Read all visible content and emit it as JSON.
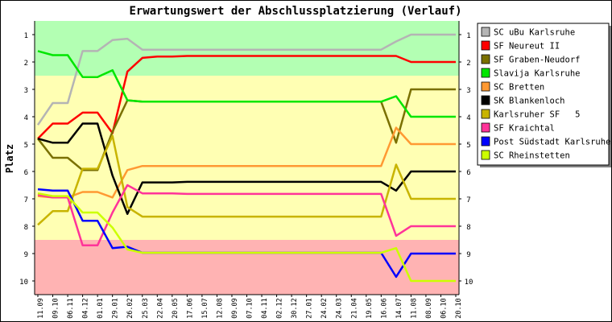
{
  "chart_data": {
    "type": "line",
    "title": "Erwartungswert der Abschlussplatzierung (Verlauf)",
    "ylabel": "Platz",
    "xlabel": "",
    "ylim": [
      0.5,
      10.5
    ],
    "y_inverted": true,
    "yticks": [
      1,
      2,
      3,
      4,
      5,
      6,
      7,
      8,
      9,
      10
    ],
    "x": [
      "11.09",
      "09.10",
      "06.11",
      "04.12",
      "01.01",
      "29.01",
      "26.02",
      "25.03",
      "22.04",
      "20.05",
      "17.06",
      "15.07",
      "12.08",
      "09.09",
      "07.10",
      "04.11",
      "02.12",
      "30.12",
      "27.01",
      "24.02",
      "24.03",
      "21.04",
      "19.05",
      "16.06",
      "14.07",
      "11.08",
      "08.09",
      "06.10",
      "20.10"
    ],
    "grid": false,
    "legend_position": "right",
    "zones": [
      {
        "from": 0.5,
        "to": 2.5,
        "color": "#b3ffb3"
      },
      {
        "from": 2.5,
        "to": 8.5,
        "color": "#ffffb3"
      },
      {
        "from": 8.5,
        "to": 10.5,
        "color": "#ffb3b3"
      }
    ],
    "series": [
      {
        "name": "SC uBu Karlsruhe",
        "color": "#b4b4b4",
        "values": [
          4.3,
          3.5,
          3.5,
          1.6,
          1.6,
          1.2,
          1.15,
          1.55,
          1.55,
          1.55,
          1.55,
          1.55,
          1.55,
          1.55,
          1.55,
          1.55,
          1.55,
          1.55,
          1.55,
          1.55,
          1.55,
          1.55,
          1.55,
          1.55,
          1.25,
          1.0,
          1.0,
          1.0,
          1.0
        ]
      },
      {
        "name": "SF Neureut II",
        "color": "#ff0000",
        "values": [
          4.8,
          4.25,
          4.25,
          3.85,
          3.85,
          4.6,
          2.35,
          1.85,
          1.8,
          1.8,
          1.78,
          1.78,
          1.78,
          1.78,
          1.78,
          1.78,
          1.78,
          1.78,
          1.78,
          1.78,
          1.78,
          1.78,
          1.78,
          1.78,
          1.78,
          2.0,
          2.0,
          2.0,
          2.0
        ]
      },
      {
        "name": "SF Graben-Neudorf",
        "color": "#7a7000",
        "values": [
          4.8,
          5.5,
          5.5,
          5.95,
          5.95,
          4.55,
          3.4,
          3.45,
          3.45,
          3.45,
          3.45,
          3.45,
          3.45,
          3.45,
          3.45,
          3.45,
          3.45,
          3.45,
          3.45,
          3.45,
          3.45,
          3.45,
          3.45,
          3.45,
          4.95,
          3.0,
          3.0,
          3.0,
          3.0
        ]
      },
      {
        "name": "Slavija Karlsruhe",
        "color": "#00e600",
        "values": [
          1.6,
          1.75,
          1.75,
          2.55,
          2.55,
          2.3,
          3.4,
          3.45,
          3.45,
          3.45,
          3.45,
          3.45,
          3.45,
          3.45,
          3.45,
          3.45,
          3.45,
          3.45,
          3.45,
          3.45,
          3.45,
          3.45,
          3.45,
          3.45,
          3.25,
          4.0,
          4.0,
          4.0,
          4.0
        ]
      },
      {
        "name": "SC Bretten",
        "color": "#ff9933",
        "values": [
          6.9,
          6.95,
          6.95,
          6.75,
          6.75,
          6.95,
          5.95,
          5.8,
          5.8,
          5.8,
          5.8,
          5.8,
          5.8,
          5.8,
          5.8,
          5.8,
          5.8,
          5.8,
          5.8,
          5.8,
          5.8,
          5.8,
          5.8,
          5.8,
          4.4,
          5.0,
          5.0,
          5.0,
          5.0
        ]
      },
      {
        "name": "SK Blankenloch",
        "color": "#000000",
        "values": [
          4.8,
          4.95,
          4.95,
          4.25,
          4.25,
          6.15,
          7.55,
          6.4,
          6.4,
          6.4,
          6.38,
          6.38,
          6.38,
          6.38,
          6.38,
          6.38,
          6.38,
          6.38,
          6.38,
          6.38,
          6.38,
          6.38,
          6.38,
          6.38,
          6.7,
          6.0,
          6.0,
          6.0,
          6.0
        ]
      },
      {
        "name": "Karlsruher SF   5",
        "color": "#c8b400",
        "values": [
          7.95,
          7.45,
          7.45,
          5.9,
          5.9,
          4.7,
          7.3,
          7.65,
          7.65,
          7.65,
          7.65,
          7.65,
          7.65,
          7.65,
          7.65,
          7.65,
          7.65,
          7.65,
          7.65,
          7.65,
          7.65,
          7.65,
          7.65,
          7.65,
          5.75,
          7.0,
          7.0,
          7.0,
          7.0
        ]
      },
      {
        "name": "SF Kraichtal",
        "color": "#ff3399",
        "values": [
          6.85,
          6.95,
          6.95,
          8.7,
          8.7,
          7.5,
          6.5,
          6.8,
          6.8,
          6.8,
          6.82,
          6.82,
          6.82,
          6.82,
          6.82,
          6.82,
          6.82,
          6.82,
          6.82,
          6.82,
          6.82,
          6.82,
          6.82,
          6.82,
          8.35,
          8.0,
          8.0,
          8.0,
          8.0
        ]
      },
      {
        "name": "Post Südstadt Karlsruhe",
        "color": "#0000ff",
        "values": [
          6.65,
          6.7,
          6.7,
          7.8,
          7.8,
          8.8,
          8.75,
          8.97,
          8.97,
          8.97,
          8.97,
          8.97,
          8.97,
          8.97,
          8.97,
          8.97,
          8.97,
          8.97,
          8.97,
          8.97,
          8.97,
          8.97,
          8.97,
          8.97,
          9.85,
          9.0,
          9.0,
          9.0,
          9.0
        ]
      },
      {
        "name": "SC Rheinstetten",
        "color": "#ccff00",
        "values": [
          6.8,
          6.9,
          6.9,
          7.5,
          7.5,
          8.05,
          8.85,
          8.97,
          8.97,
          8.97,
          8.97,
          8.97,
          8.97,
          8.97,
          8.97,
          8.97,
          8.97,
          8.97,
          8.97,
          8.97,
          8.97,
          8.97,
          8.97,
          8.97,
          8.8,
          10.0,
          10.0,
          10.0,
          10.0
        ]
      }
    ]
  }
}
